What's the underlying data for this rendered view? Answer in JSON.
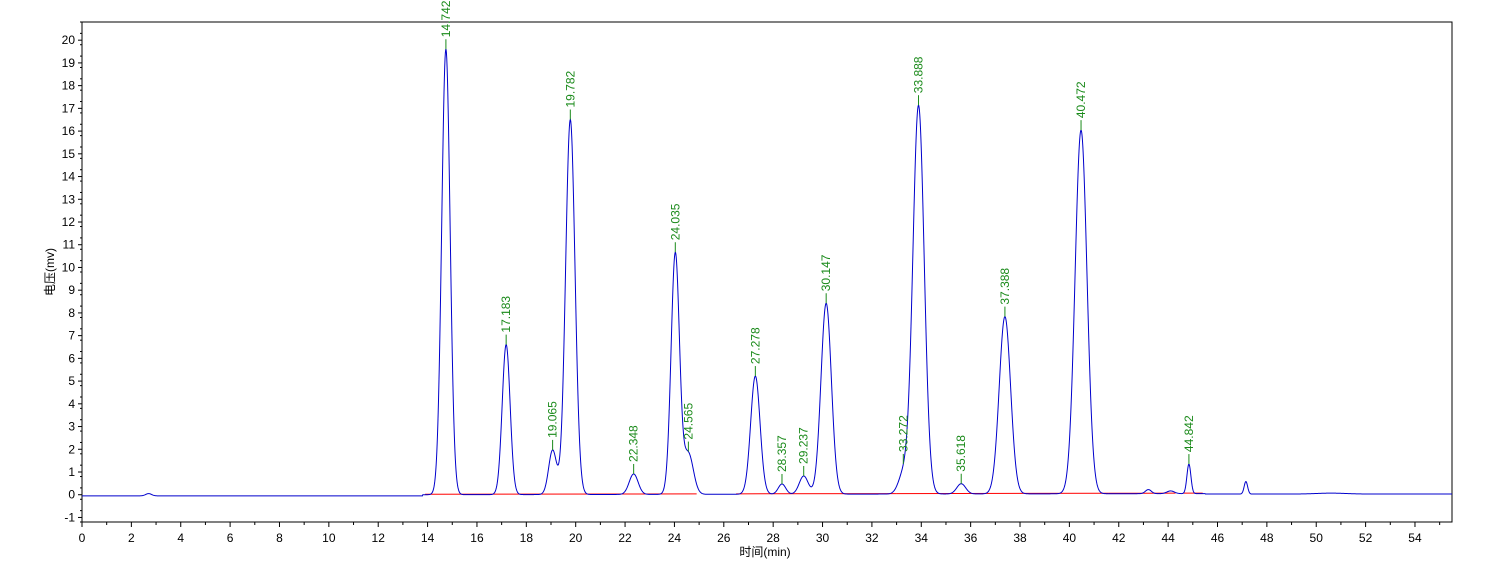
{
  "chart_data": {
    "type": "line",
    "xlabel": "时间(min)",
    "ylabel": "电压(mv)",
    "xlim": [
      0,
      55.5
    ],
    "ylim": [
      -1.2,
      20.8
    ],
    "x_ticks": [
      0,
      2,
      4,
      6,
      8,
      10,
      12,
      14,
      16,
      18,
      20,
      22,
      24,
      26,
      28,
      30,
      32,
      34,
      36,
      38,
      40,
      42,
      44,
      46,
      48,
      50,
      52,
      54
    ],
    "y_ticks": [
      -1,
      0,
      1,
      2,
      3,
      4,
      5,
      6,
      7,
      8,
      9,
      10,
      11,
      12,
      13,
      14,
      15,
      16,
      17,
      18,
      19,
      20
    ],
    "grid": false,
    "colors": {
      "signal": "#0000cc",
      "baseline": "#ff0000",
      "peak_label": "#1a8a1a",
      "axis": "#000000"
    },
    "series": [
      {
        "peaks": [
          {
            "label": "14.742",
            "rt": 14.742,
            "height": 19.6,
            "width": 0.17
          },
          {
            "label": "17.183",
            "rt": 17.183,
            "height": 6.6,
            "width": 0.16
          },
          {
            "label": "19.065",
            "rt": 19.065,
            "height": 1.95,
            "width": 0.16
          },
          {
            "label": "19.782",
            "rt": 19.782,
            "height": 16.5,
            "width": 0.19
          },
          {
            "label": "22.348",
            "rt": 22.348,
            "height": 0.9,
            "width": 0.18
          },
          {
            "label": "24.035",
            "rt": 24.035,
            "height": 10.6,
            "width": 0.17
          },
          {
            "label": "24.565",
            "rt": 24.565,
            "height": 1.8,
            "width": 0.2
          },
          {
            "label": "27.278",
            "rt": 27.278,
            "height": 5.2,
            "width": 0.19
          },
          {
            "label": "28.357",
            "rt": 28.357,
            "height": 0.45,
            "width": 0.15
          },
          {
            "label": "29.237",
            "rt": 29.237,
            "height": 0.8,
            "width": 0.18
          },
          {
            "label": "30.147",
            "rt": 30.147,
            "height": 8.4,
            "width": 0.21
          },
          {
            "label": "33.272",
            "rt": 33.272,
            "height": 0.85,
            "width": 0.2
          },
          {
            "label": "33.888",
            "rt": 33.888,
            "height": 17.1,
            "width": 0.23
          },
          {
            "label": "35.618",
            "rt": 35.618,
            "height": 0.45,
            "width": 0.18
          },
          {
            "label": "37.388",
            "rt": 37.388,
            "height": 7.8,
            "width": 0.23
          },
          {
            "label": "40.472",
            "rt": 40.472,
            "height": 16.0,
            "width": 0.24
          },
          {
            "label": "44.842",
            "rt": 44.842,
            "height": 1.3,
            "width": 0.08
          }
        ],
        "unlabeled_bumps": [
          {
            "rt": 2.7,
            "height": 0.1,
            "width": 0.12
          },
          {
            "rt": 43.2,
            "height": 0.18,
            "width": 0.12
          },
          {
            "rt": 44.1,
            "height": 0.12,
            "width": 0.15
          },
          {
            "rt": 47.15,
            "height": 0.55,
            "width": 0.07
          },
          {
            "rt": 50.6,
            "height": 0.04,
            "width": 0.6
          }
        ]
      }
    ],
    "baseline_segments": [
      [
        13.9,
        24.9
      ],
      [
        26.5,
        33.0
      ],
      [
        33.0,
        41.6
      ],
      [
        41.6,
        44.3
      ],
      [
        44.6,
        45.4
      ]
    ]
  }
}
